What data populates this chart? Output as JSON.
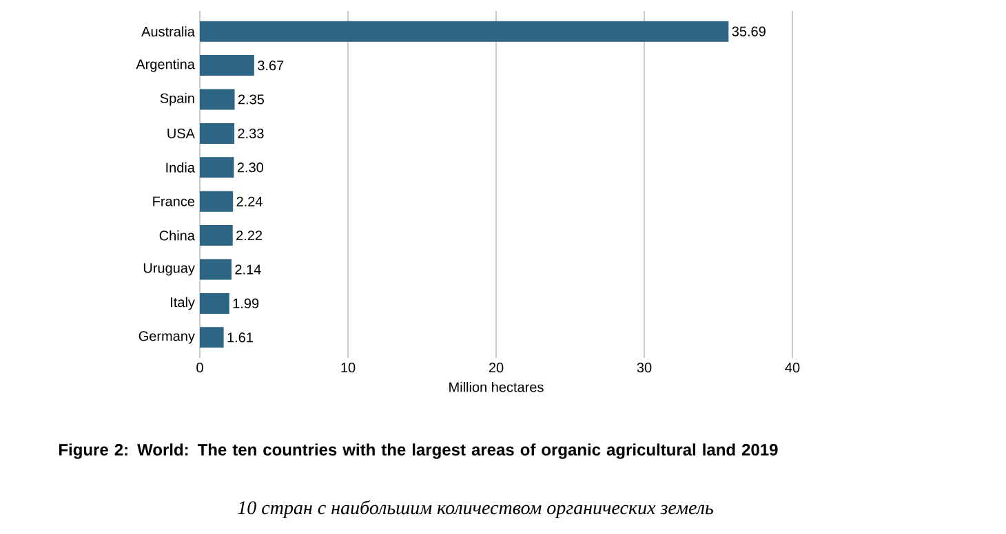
{
  "chart_data": {
    "type": "bar",
    "orientation": "horizontal",
    "title": "Figure 2: World: The ten countries with the largest areas of organic agricultural land 2019",
    "xlabel": "Million hectares",
    "categories": [
      "Australia",
      "Argentina",
      "Spain",
      "USA",
      "India",
      "France",
      "China",
      "Uruguay",
      "Italy",
      "Germany"
    ],
    "values": [
      35.69,
      3.67,
      2.35,
      2.33,
      2.3,
      2.24,
      2.22,
      2.14,
      1.99,
      1.61
    ],
    "value_labels": [
      "35.69",
      "3.67",
      "2.35",
      "2.33",
      "2.30",
      "2.24",
      "2.22",
      "2.14",
      "1.99",
      "1.61"
    ],
    "color": "#2e6585",
    "xlim": [
      0,
      40
    ],
    "xticks": [
      0,
      10,
      20,
      30,
      40
    ],
    "grid": "x",
    "annotations": [
      "10 стран с наибольшим количеством органических земель"
    ]
  }
}
